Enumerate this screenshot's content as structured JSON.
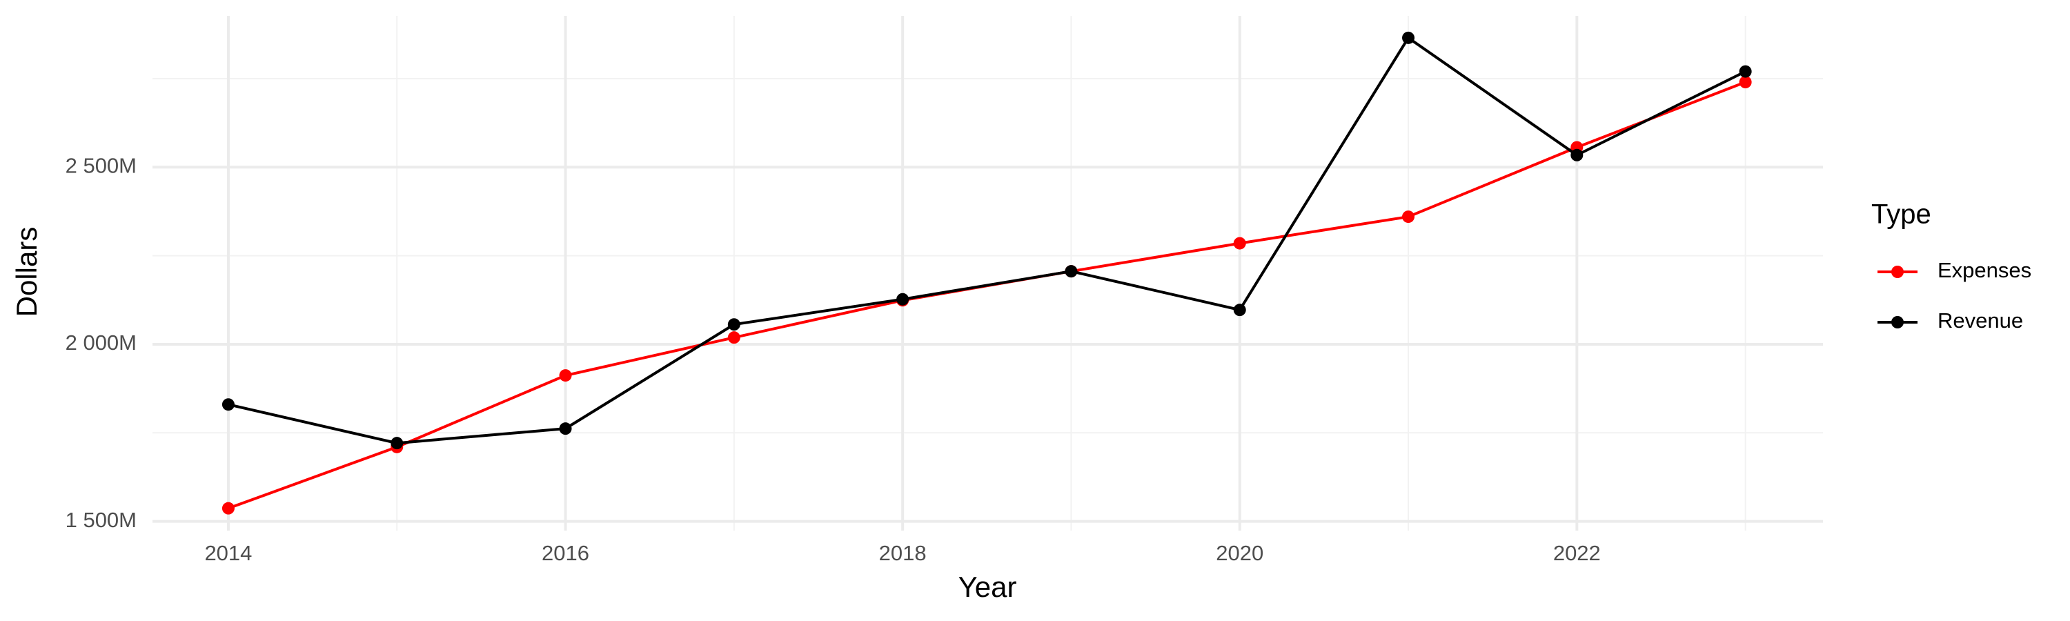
{
  "chart_data": {
    "type": "line",
    "x_label": "Year",
    "y_label": "Dollars",
    "legend_title": "Type",
    "legend_position": "right",
    "grid": true,
    "x": [
      2014,
      2015,
      2016,
      2017,
      2018,
      2019,
      2020,
      2021,
      2022,
      2023
    ],
    "series": [
      {
        "name": "Expenses",
        "color": "#ff0000",
        "values": [
          1537,
          1710,
          1912,
          2019,
          2124,
          2206,
          2285,
          2360,
          2556,
          2740
        ]
      },
      {
        "name": "Revenue",
        "color": "#000000",
        "values": [
          1830,
          1721,
          1762,
          2056,
          2127,
          2206,
          2097,
          2865,
          2534,
          2770
        ]
      }
    ],
    "xlim": [
      2013.55,
      2023.46
    ],
    "xticks": [
      2014,
      2016,
      2018,
      2020,
      2022
    ],
    "x_minor_ticks": [
      2015,
      2017,
      2019,
      2021,
      2023
    ],
    "ylim": [
      1474,
      2927
    ],
    "yticks": [
      {
        "value": 1500,
        "label": "1 500M"
      },
      {
        "value": 2000,
        "label": "2 000M"
      },
      {
        "value": 2500,
        "label": "2 500M"
      }
    ],
    "y_minor_ticks": [
      1750,
      2250,
      2750
    ]
  }
}
